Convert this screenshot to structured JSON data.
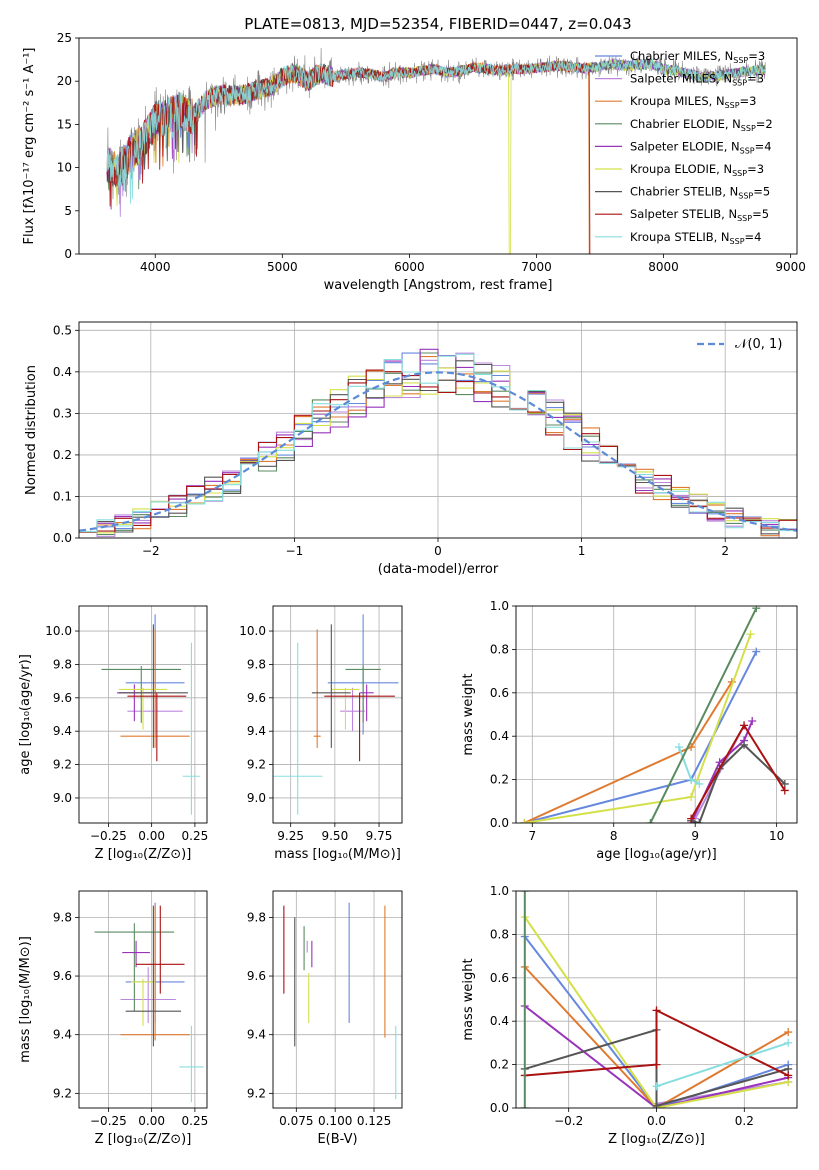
{
  "chart_data": [
    {
      "id": "spectrum",
      "type": "line",
      "title": "PLATE=0813, MJD=52354, FIBERID=0447, z=0.043",
      "xlabel": "wavelength [Angstrom, rest frame]",
      "ylabel": "Flux [fλ10⁻¹⁷ erg cm⁻² s⁻¹ A⁻¹]",
      "xlim": [
        3400,
        9050
      ],
      "ylim": [
        0,
        25
      ],
      "xticks": [
        "4000",
        "5000",
        "6000",
        "7000",
        "8000",
        "9000"
      ],
      "yticks": [
        "0",
        "5",
        "10",
        "15",
        "20",
        "25"
      ],
      "observed": {
        "x": [
          3620,
          3700,
          3800,
          3900,
          4000,
          4100,
          4200,
          4300,
          4400,
          4500,
          4600,
          4700,
          4800,
          4900,
          5000,
          5100,
          5200,
          5300,
          5400,
          5500,
          5600,
          5700,
          5800,
          5900,
          6000,
          6100,
          6200,
          6300,
          6400,
          6500,
          6600,
          6700,
          6800,
          6900,
          7000,
          7100,
          7200,
          7300,
          7400,
          7500,
          7600,
          7700,
          7800,
          7900,
          8000,
          8100,
          8200,
          8300,
          8400,
          8500,
          8600,
          8700,
          8800
        ],
        "y": [
          10.5,
          9.5,
          11.5,
          13.0,
          15.5,
          16.0,
          16.5,
          16.0,
          17.8,
          18.5,
          18.3,
          18.5,
          19.0,
          19.2,
          20.5,
          21.0,
          20.0,
          21.0,
          20.5,
          20.8,
          21.0,
          20.8,
          20.5,
          21.0,
          21.0,
          21.2,
          21.4,
          21.0,
          21.2,
          21.6,
          21.5,
          21.2,
          21.4,
          21.4,
          21.5,
          21.7,
          21.8,
          21.6,
          21.5,
          21.7,
          22.0,
          21.8,
          21.9,
          22.0,
          21.4,
          21.2,
          20.8,
          20.5,
          20.6,
          20.8,
          21.0,
          21.2,
          21.3
        ]
      },
      "legend_position": "upper-right",
      "series": [
        {
          "name": "Chabrier MILES, N",
          "ssp_count": "3",
          "color": "#6688dd"
        },
        {
          "name": "Salpeter MILES, N",
          "ssp_count": "3",
          "color": "#bb88dd"
        },
        {
          "name": "Kroupa MILES, N",
          "ssp_count": "3",
          "color": "#e07a30"
        },
        {
          "name": "Chabrier ELODIE, N",
          "ssp_count": "2",
          "color": "#5a8a60"
        },
        {
          "name": "Salpeter ELODIE, N",
          "ssp_count": "4",
          "color": "#9933bb"
        },
        {
          "name": "Kroupa ELODIE, N",
          "ssp_count": "3",
          "color": "#d4e04a"
        },
        {
          "name": "Chabrier STELIB, N",
          "ssp_count": "5",
          "color": "#555555"
        },
        {
          "name": "Salpeter STELIB, N",
          "ssp_count": "5",
          "color": "#aa1111"
        },
        {
          "name": "Kroupa STELIB, N",
          "ssp_count": "4",
          "color": "#88dddd"
        }
      ],
      "ssp_subscript": "SSP",
      "dropouts": [
        {
          "series": 5,
          "x": 6790
        },
        {
          "series": 2,
          "x": 7420
        },
        {
          "series": 7,
          "x": 7425
        }
      ]
    },
    {
      "id": "residuals",
      "type": "line",
      "xlabel": "(data-model)/error",
      "ylabel": "Normed distribution",
      "xlim": [
        -2.5,
        2.5
      ],
      "ylim": [
        0,
        0.52
      ],
      "xticks": [
        "−2",
        "−1",
        "0",
        "1",
        "2"
      ],
      "yticks": [
        "0.0",
        "0.1",
        "0.2",
        "0.3",
        "0.4",
        "0.5"
      ],
      "reference_label": "𝒩(0, 1)",
      "reference_color": "#5b8ad6",
      "bin_width": 0.125
    },
    {
      "id": "age_vs_Z",
      "type": "scatter",
      "xlabel": "Z [log₁₀(Z/Z⊙)]",
      "ylabel": "age  [log₁₀(age/yr)]",
      "xlim": [
        -0.42,
        0.32
      ],
      "ylim": [
        8.85,
        10.15
      ],
      "xticks": [
        "−0.25",
        "0.00",
        "0.25"
      ],
      "yticks": [
        "9.0",
        "9.2",
        "9.4",
        "9.6",
        "9.8",
        "10.0"
      ],
      "points": [
        {
          "series": 0,
          "x": 0.02,
          "y": 9.69,
          "xerr": 0.17,
          "yerr": [
            0.31,
            0.41
          ]
        },
        {
          "series": 1,
          "x": 0.02,
          "y": 9.52,
          "xerr": 0.16,
          "yerr": [
            0.12,
            0.14
          ]
        },
        {
          "series": 2,
          "x": 0.02,
          "y": 9.37,
          "xerr": 0.2,
          "yerr": [
            0.07,
            0.64
          ]
        },
        {
          "series": 3,
          "x": -0.06,
          "y": 9.77,
          "xerr": 0.23,
          "yerr": [
            0.32,
            0.02
          ]
        },
        {
          "series": 4,
          "x": -0.1,
          "y": 9.63,
          "xerr": 0.1,
          "yerr": [
            0.17,
            0.05
          ]
        },
        {
          "series": 5,
          "x": -0.05,
          "y": 9.65,
          "xerr": 0.14,
          "yerr": [
            0.24,
            0.01
          ]
        },
        {
          "series": 6,
          "x": 0.01,
          "y": 9.63,
          "xerr": 0.2,
          "yerr": [
            0.33,
            0.41
          ]
        },
        {
          "series": 7,
          "x": 0.03,
          "y": 9.61,
          "xerr": 0.17,
          "yerr": [
            0.39,
            0.02
          ]
        },
        {
          "series": 8,
          "x": 0.23,
          "y": 9.13,
          "xerr": 0.05,
          "yerr": [
            0.23,
            0.8
          ]
        }
      ]
    },
    {
      "id": "age_vs_mass",
      "type": "scatter",
      "xlabel": "mass [log₁₀(M/M⊙)]",
      "ylabel": "",
      "xlim": [
        9.15,
        9.88
      ],
      "ylim": [
        8.85,
        10.15
      ],
      "xticks": [
        "9.25",
        "9.50",
        "9.75"
      ],
      "yticks": [
        "9.0",
        "9.2",
        "9.4",
        "9.6",
        "9.8",
        "10.0"
      ],
      "points": [
        {
          "series": 0,
          "x": 9.66,
          "y": 9.69,
          "xerr": 0.2,
          "yerr": [
            0.31,
            0.41
          ]
        },
        {
          "series": 1,
          "x": 9.6,
          "y": 9.52,
          "xerr": 0.07,
          "yerr": [
            0.12,
            0.14
          ]
        },
        {
          "series": 2,
          "x": 9.4,
          "y": 9.37,
          "xerr": 0.02,
          "yerr": [
            0.07,
            0.64
          ]
        },
        {
          "series": 3,
          "x": 9.66,
          "y": 9.77,
          "xerr": 0.1,
          "yerr": [
            0.32,
            0.02
          ]
        },
        {
          "series": 4,
          "x": 9.68,
          "y": 9.63,
          "xerr": 0.04,
          "yerr": [
            0.17,
            0.05
          ]
        },
        {
          "series": 5,
          "x": 9.56,
          "y": 9.65,
          "xerr": 0.08,
          "yerr": [
            0.24,
            0.01
          ]
        },
        {
          "series": 6,
          "x": 9.48,
          "y": 9.63,
          "xerr": 0.11,
          "yerr": [
            0.33,
            0.41
          ]
        },
        {
          "series": 7,
          "x": 9.64,
          "y": 9.61,
          "xerr": 0.2,
          "yerr": [
            0.39,
            0.02
          ]
        },
        {
          "series": 8,
          "x": 9.29,
          "y": 9.13,
          "xerr": 0.14,
          "yerr": [
            0.23,
            0.8
          ]
        }
      ]
    },
    {
      "id": "weight_vs_age",
      "type": "line",
      "xlabel": "age  [log₁₀(age/yr)]",
      "ylabel": "mass weight",
      "xlim": [
        6.8,
        10.25
      ],
      "ylim": [
        0,
        1
      ],
      "xticks": [
        "7",
        "8",
        "9",
        "10"
      ],
      "yticks": [
        "0.0",
        "0.2",
        "0.4",
        "0.6",
        "0.8",
        "1.0"
      ],
      "series": [
        {
          "series": 0,
          "x": [
            6.9,
            8.95,
            9.75
          ],
          "y": [
            0.0,
            0.2,
            0.79
          ]
        },
        {
          "series": 1,
          "x": [
            9.0,
            9.6
          ],
          "y": [
            0.02,
            0.45
          ]
        },
        {
          "series": 2,
          "x": [
            6.9,
            8.95,
            9.45
          ],
          "y": [
            0.0,
            0.35,
            0.65
          ]
        },
        {
          "series": 3,
          "x": [
            8.45,
            9.75
          ],
          "y": [
            0.0,
            0.99
          ]
        },
        {
          "series": 4,
          "x": [
            8.95,
            9.3,
            9.6,
            9.7
          ],
          "y": [
            0.0,
            0.28,
            0.38,
            0.47
          ]
        },
        {
          "series": 5,
          "x": [
            6.9,
            8.95,
            9.68
          ],
          "y": [
            0.0,
            0.12,
            0.87
          ]
        },
        {
          "series": 6,
          "x": [
            8.95,
            9.05,
            9.3,
            9.6,
            10.1
          ],
          "y": [
            0.01,
            0.0,
            0.25,
            0.36,
            0.18
          ]
        },
        {
          "series": 7,
          "x": [
            8.95,
            9.6,
            10.1
          ],
          "y": [
            0.02,
            0.45,
            0.15
          ]
        },
        {
          "series": 8,
          "x": [
            8.8,
            8.95,
            9.05
          ],
          "y": [
            0.35,
            0.2,
            0.18
          ]
        }
      ]
    },
    {
      "id": "mass_vs_Z",
      "type": "scatter",
      "xlabel": "Z [log₁₀(Z/Z⊙)]",
      "ylabel": "mass [log₁₀(M/M⊙)]",
      "xlim": [
        -0.42,
        0.32
      ],
      "ylim": [
        9.15,
        9.89
      ],
      "xticks": [
        "−0.25",
        "0.00",
        "0.25"
      ],
      "yticks": [
        "9.2",
        "9.4",
        "9.6",
        "9.8"
      ],
      "points": [
        {
          "series": 0,
          "x": 0.02,
          "y": 9.58,
          "xerr": 0.17,
          "yerr": [
            0.14,
            0.27
          ]
        },
        {
          "series": 1,
          "x": -0.02,
          "y": 9.52,
          "xerr": 0.16,
          "yerr": [
            0.08,
            0.11
          ]
        },
        {
          "series": 2,
          "x": 0.02,
          "y": 9.4,
          "xerr": 0.2,
          "yerr": [
            0.02,
            0.44
          ]
        },
        {
          "series": 3,
          "x": -0.1,
          "y": 9.75,
          "xerr": 0.23,
          "yerr": [
            0.27,
            0.03
          ]
        },
        {
          "series": 4,
          "x": -0.09,
          "y": 9.68,
          "xerr": 0.08,
          "yerr": [
            0.05,
            0.04
          ]
        },
        {
          "series": 5,
          "x": -0.05,
          "y": 9.58,
          "xerr": 0.07,
          "yerr": [
            0.15,
            0.01
          ]
        },
        {
          "series": 6,
          "x": 0.01,
          "y": 9.48,
          "xerr": 0.16,
          "yerr": [
            0.12,
            0.36
          ]
        },
        {
          "series": 7,
          "x": 0.05,
          "y": 9.64,
          "xerr": 0.14,
          "yerr": [
            0.1,
            0.2
          ]
        },
        {
          "series": 8,
          "x": 0.23,
          "y": 9.29,
          "xerr": 0.07,
          "yerr": [
            0.12,
            0.14
          ]
        }
      ]
    },
    {
      "id": "mass_vs_ebv",
      "type": "scatter",
      "xlabel": "E(B-V)",
      "ylabel": "",
      "xlim": [
        0.06,
        0.143
      ],
      "ylim": [
        9.15,
        9.89
      ],
      "xticks": [
        "0.075",
        "0.100",
        "0.125"
      ],
      "yticks": [
        "9.2",
        "9.4",
        "9.6",
        "9.8"
      ],
      "points": [
        {
          "series": 0,
          "x": 0.109,
          "y": 9.64,
          "yerr": [
            0.2,
            0.21
          ]
        },
        {
          "series": 1,
          "x": 0.082,
          "y": 9.7,
          "yerr": [
            0.02,
            0.02
          ]
        },
        {
          "series": 2,
          "x": 0.132,
          "y": 9.61,
          "yerr": [
            0.22,
            0.23
          ]
        },
        {
          "series": 3,
          "x": 0.08,
          "y": 9.66,
          "yerr": [
            0.04,
            0.11
          ]
        },
        {
          "series": 4,
          "x": 0.085,
          "y": 9.68,
          "yerr": [
            0.05,
            0.04
          ]
        },
        {
          "series": 5,
          "x": 0.083,
          "y": 9.58,
          "yerr": [
            0.14,
            0.03
          ]
        },
        {
          "series": 6,
          "x": 0.074,
          "y": 9.58,
          "yerr": [
            0.22,
            0.22
          ]
        },
        {
          "series": 7,
          "x": 0.067,
          "y": 9.69,
          "yerr": [
            0.15,
            0.15
          ]
        },
        {
          "series": 8,
          "x": 0.139,
          "y": 9.3,
          "yerr": [
            0.12,
            0.13
          ]
        }
      ]
    },
    {
      "id": "weight_vs_Z",
      "type": "line",
      "xlabel": "Z [log₁₀(Z/Z⊙)]",
      "ylabel": "mass weight",
      "xlim": [
        -0.32,
        0.32
      ],
      "ylim": [
        0,
        1
      ],
      "xticks": [
        "−0.2",
        "0.0",
        "0.2"
      ],
      "yticks": [
        "0.0",
        "0.2",
        "0.4",
        "0.6",
        "0.8",
        "1.0"
      ],
      "series": [
        {
          "series": 0,
          "x": [
            -0.3,
            0.0,
            0.3
          ],
          "y": [
            0.79,
            0.0,
            0.2
          ]
        },
        {
          "series": 1,
          "x": [
            0.0,
            0.3
          ],
          "y": [
            0.02,
            0.12
          ]
        },
        {
          "series": 2,
          "x": [
            -0.3,
            0.0,
            0.3
          ],
          "y": [
            0.65,
            0.0,
            0.35
          ]
        },
        {
          "series": 3,
          "x": [
            -0.3,
            -0.3
          ],
          "y": [
            0.0,
            1.0
          ]
        },
        {
          "series": 4,
          "x": [
            -0.3,
            0.0,
            0.3
          ],
          "y": [
            0.47,
            0.0,
            0.14
          ]
        },
        {
          "series": 5,
          "x": [
            -0.3,
            0.0,
            0.3
          ],
          "y": [
            0.88,
            0.0,
            0.12
          ]
        },
        {
          "series": 6,
          "x": [
            -0.3,
            0.0,
            0.0,
            0.3
          ],
          "y": [
            0.18,
            0.36,
            0.01,
            0.18
          ]
        },
        {
          "series": 7,
          "x": [
            -0.3,
            0.0,
            0.0,
            0.3
          ],
          "y": [
            0.15,
            0.2,
            0.45,
            0.15
          ]
        },
        {
          "series": 8,
          "x": [
            0.0,
            0.3
          ],
          "y": [
            0.1,
            0.3
          ]
        }
      ]
    }
  ]
}
